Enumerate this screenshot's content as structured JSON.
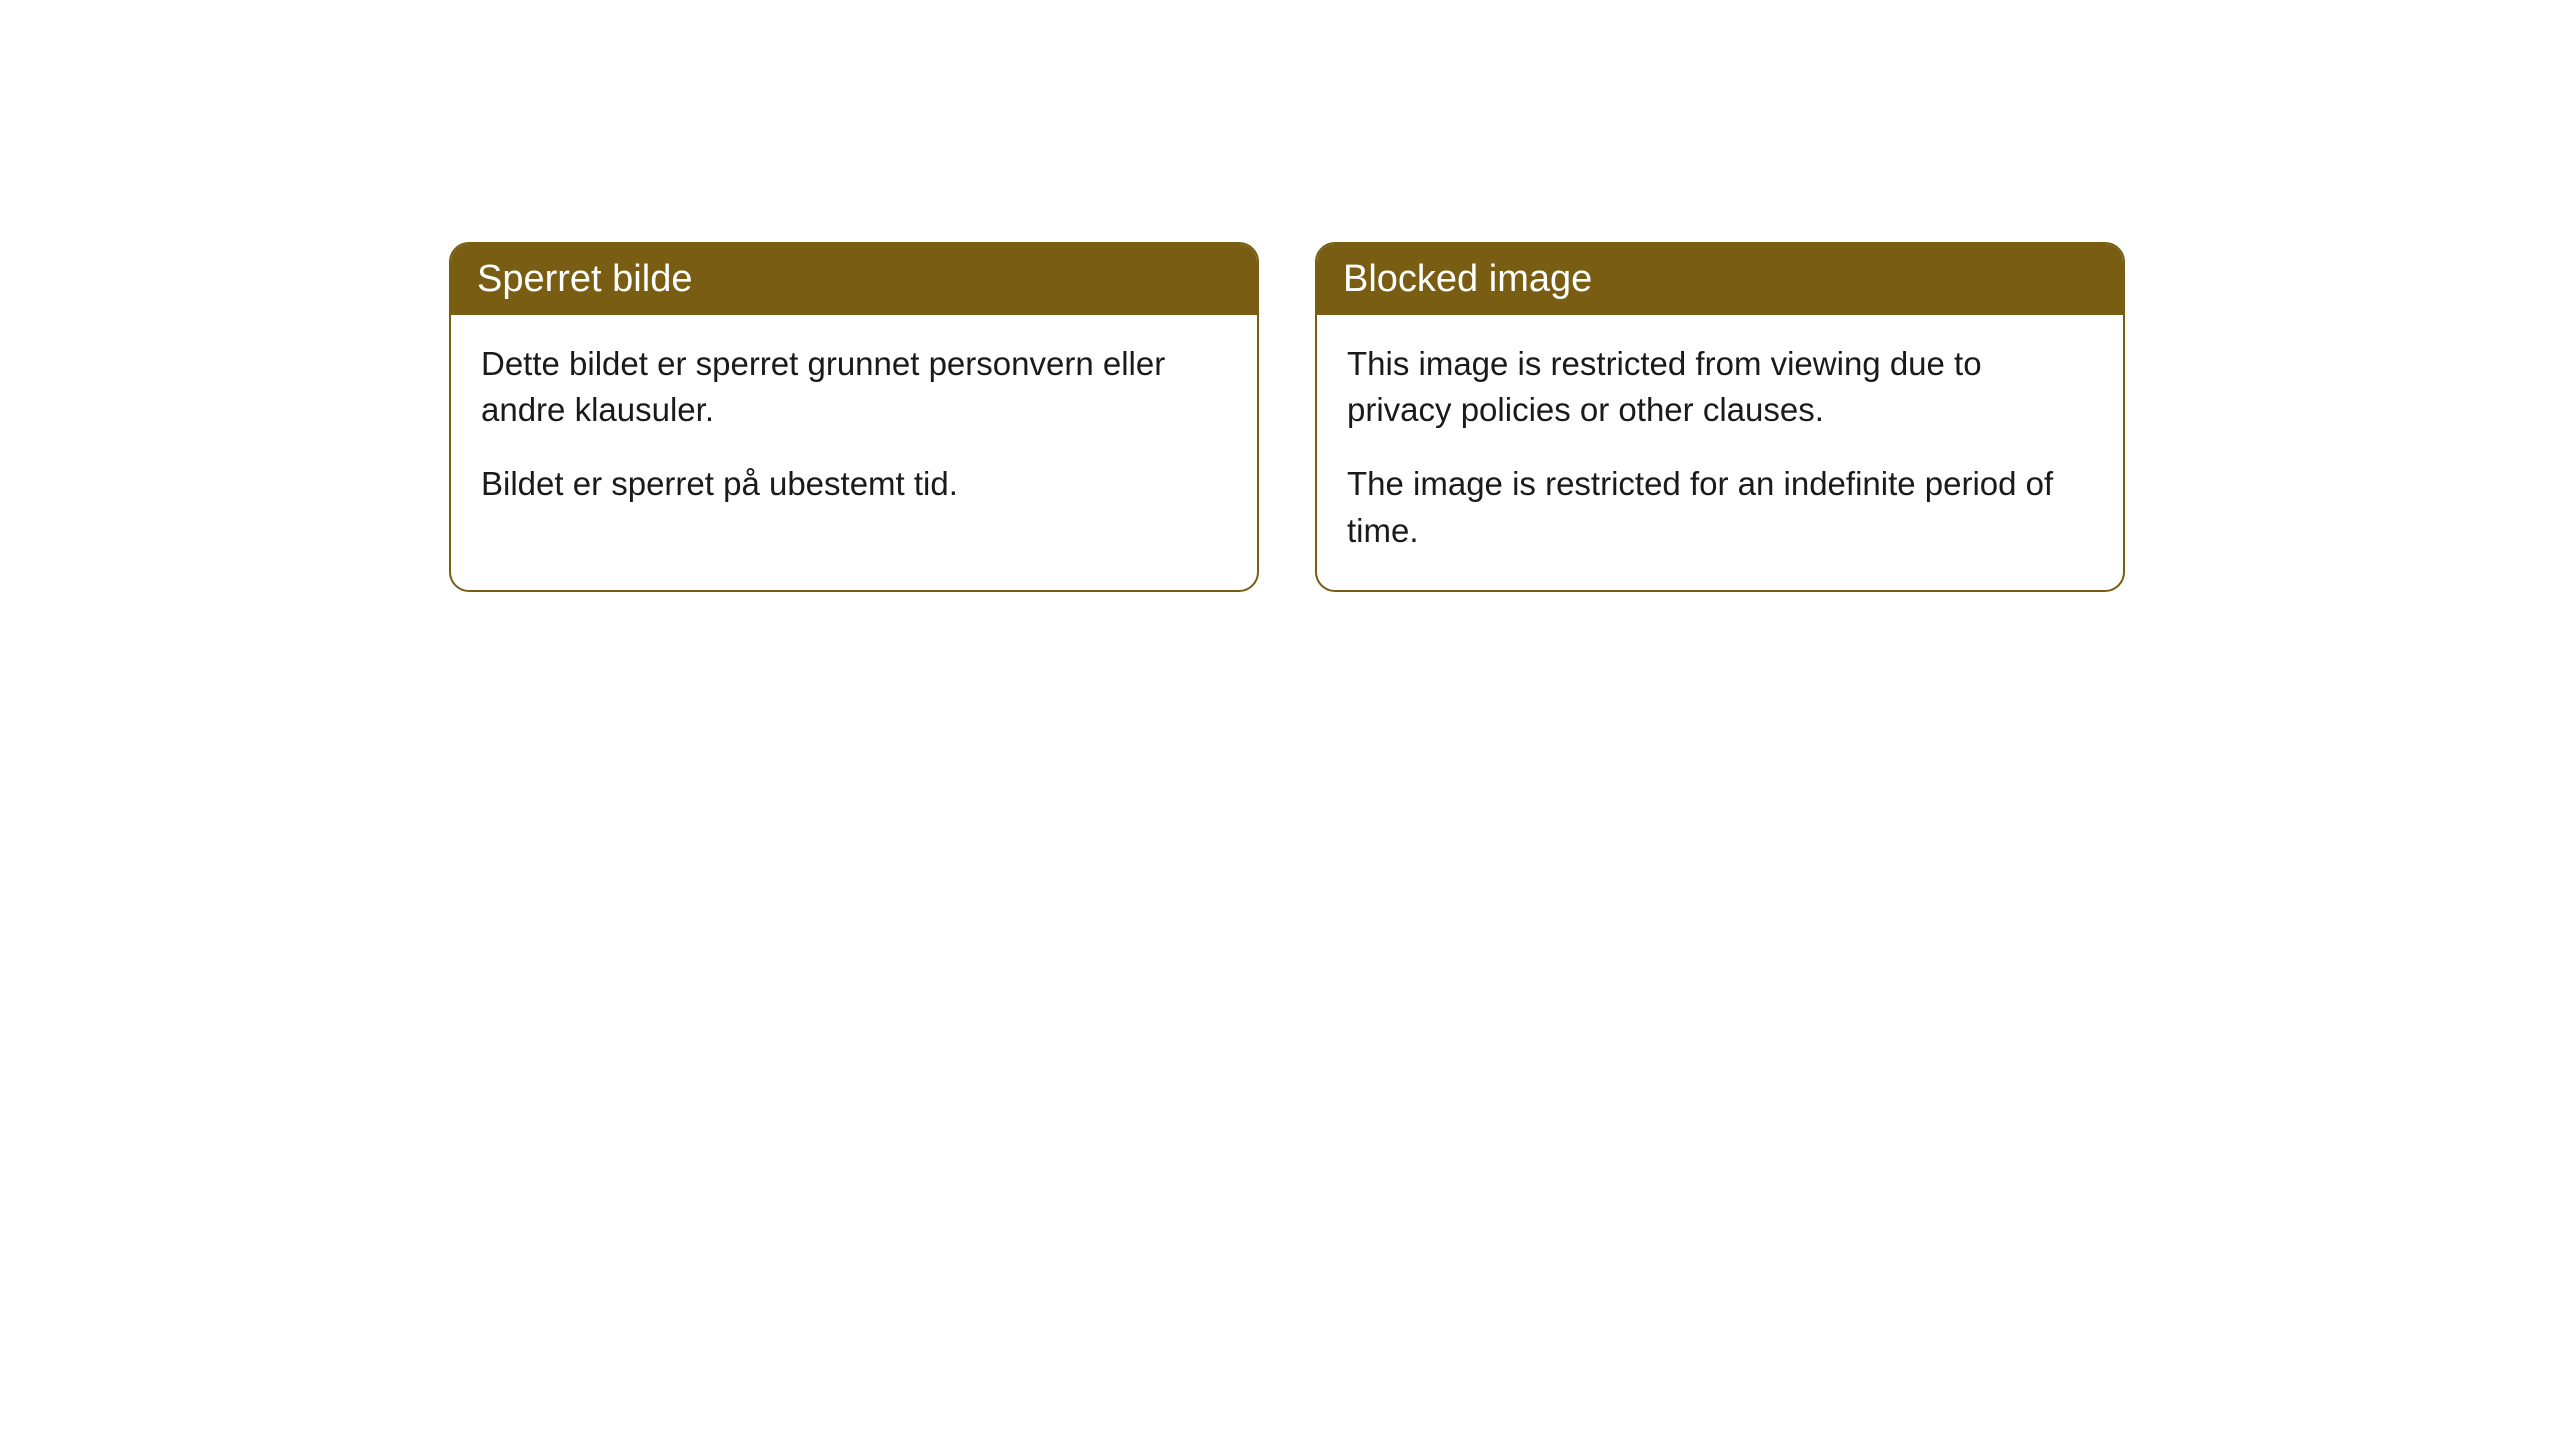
{
  "cards": {
    "left": {
      "title": "Sperret bilde",
      "paragraph1": "Dette bildet er sperret grunnet personvern eller andre klausuler.",
      "paragraph2": "Bildet er sperret på ubestemt tid."
    },
    "right": {
      "title": "Blocked image",
      "paragraph1": "This image is restricted from viewing due to privacy policies or other clauses.",
      "paragraph2": "The image is restricted for an indefinite period of time."
    }
  },
  "style": {
    "header_bg": "#785d12",
    "header_text": "#ffffff",
    "border_color": "#785d12",
    "body_bg": "#ffffff",
    "body_text": "#1a1a1a",
    "border_radius": 20,
    "title_fontsize": 38,
    "body_fontsize": 33
  }
}
